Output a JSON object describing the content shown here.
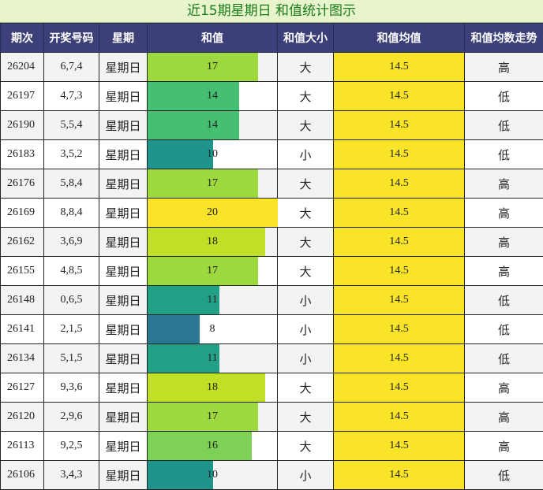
{
  "title": "近15期星期日 和值统计图示",
  "headers": [
    "期次",
    "开奖号码",
    "星期",
    "和值",
    "和值大小",
    "和值均值",
    "和值均数走势"
  ],
  "max_sum": 20,
  "rows": [
    {
      "issue": "26204",
      "numbers": "6,7,4",
      "weekday": "星期日",
      "sum": "17",
      "size": "大",
      "avg": "14.5",
      "trend": "高",
      "bar_color": "#9ed83f"
    },
    {
      "issue": "26197",
      "numbers": "4,7,3",
      "weekday": "星期日",
      "sum": "14",
      "size": "大",
      "avg": "14.5",
      "trend": "低",
      "bar_color": "#45c072"
    },
    {
      "issue": "26190",
      "numbers": "5,5,4",
      "weekday": "星期日",
      "sum": "14",
      "size": "大",
      "avg": "14.5",
      "trend": "低",
      "bar_color": "#45c072"
    },
    {
      "issue": "26183",
      "numbers": "3,5,2",
      "weekday": "星期日",
      "sum": "10",
      "size": "小",
      "avg": "14.5",
      "trend": "低",
      "bar_color": "#1f948a"
    },
    {
      "issue": "26176",
      "numbers": "5,8,4",
      "weekday": "星期日",
      "sum": "17",
      "size": "大",
      "avg": "14.5",
      "trend": "高",
      "bar_color": "#9ed83f"
    },
    {
      "issue": "26169",
      "numbers": "8,8,4",
      "weekday": "星期日",
      "sum": "20",
      "size": "大",
      "avg": "14.5",
      "trend": "高",
      "bar_color": "#f9e42a"
    },
    {
      "issue": "26162",
      "numbers": "3,6,9",
      "weekday": "星期日",
      "sum": "18",
      "size": "大",
      "avg": "14.5",
      "trend": "高",
      "bar_color": "#bfe026"
    },
    {
      "issue": "26155",
      "numbers": "4,8,5",
      "weekday": "星期日",
      "sum": "17",
      "size": "大",
      "avg": "14.5",
      "trend": "高",
      "bar_color": "#9ed83f"
    },
    {
      "issue": "26148",
      "numbers": "0,6,5",
      "weekday": "星期日",
      "sum": "11",
      "size": "小",
      "avg": "14.5",
      "trend": "低",
      "bar_color": "#22a086"
    },
    {
      "issue": "26141",
      "numbers": "2,1,5",
      "weekday": "星期日",
      "sum": "8",
      "size": "小",
      "avg": "14.5",
      "trend": "低",
      "bar_color": "#2a7891"
    },
    {
      "issue": "26134",
      "numbers": "5,1,5",
      "weekday": "星期日",
      "sum": "11",
      "size": "小",
      "avg": "14.5",
      "trend": "低",
      "bar_color": "#22a086"
    },
    {
      "issue": "26127",
      "numbers": "9,3,6",
      "weekday": "星期日",
      "sum": "18",
      "size": "大",
      "avg": "14.5",
      "trend": "高",
      "bar_color": "#bfe026"
    },
    {
      "issue": "26120",
      "numbers": "2,9,6",
      "weekday": "星期日",
      "sum": "17",
      "size": "大",
      "avg": "14.5",
      "trend": "高",
      "bar_color": "#9ed83f"
    },
    {
      "issue": "26113",
      "numbers": "9,2,5",
      "weekday": "星期日",
      "sum": "16",
      "size": "大",
      "avg": "14.5",
      "trend": "高",
      "bar_color": "#7ed157"
    },
    {
      "issue": "26106",
      "numbers": "3,4,3",
      "weekday": "星期日",
      "sum": "10",
      "size": "小",
      "avg": "14.5",
      "trend": "低",
      "bar_color": "#1f948a"
    }
  ],
  "chart_data": {
    "type": "table",
    "title": "近15期星期日 和值统计图示",
    "columns": [
      "期次",
      "开奖号码",
      "星期",
      "和值",
      "和值大小",
      "和值均值",
      "和值均数走势"
    ],
    "categories": [
      "26204",
      "26197",
      "26190",
      "26183",
      "26176",
      "26169",
      "26162",
      "26155",
      "26148",
      "26141",
      "26134",
      "26127",
      "26120",
      "26113",
      "26106"
    ],
    "series": [
      {
        "name": "和值",
        "values": [
          17,
          14,
          14,
          10,
          17,
          20,
          18,
          17,
          11,
          8,
          11,
          18,
          17,
          16,
          10
        ]
      },
      {
        "name": "和值均值",
        "values": [
          14.5,
          14.5,
          14.5,
          14.5,
          14.5,
          14.5,
          14.5,
          14.5,
          14.5,
          14.5,
          14.5,
          14.5,
          14.5,
          14.5,
          14.5
        ]
      }
    ]
  }
}
